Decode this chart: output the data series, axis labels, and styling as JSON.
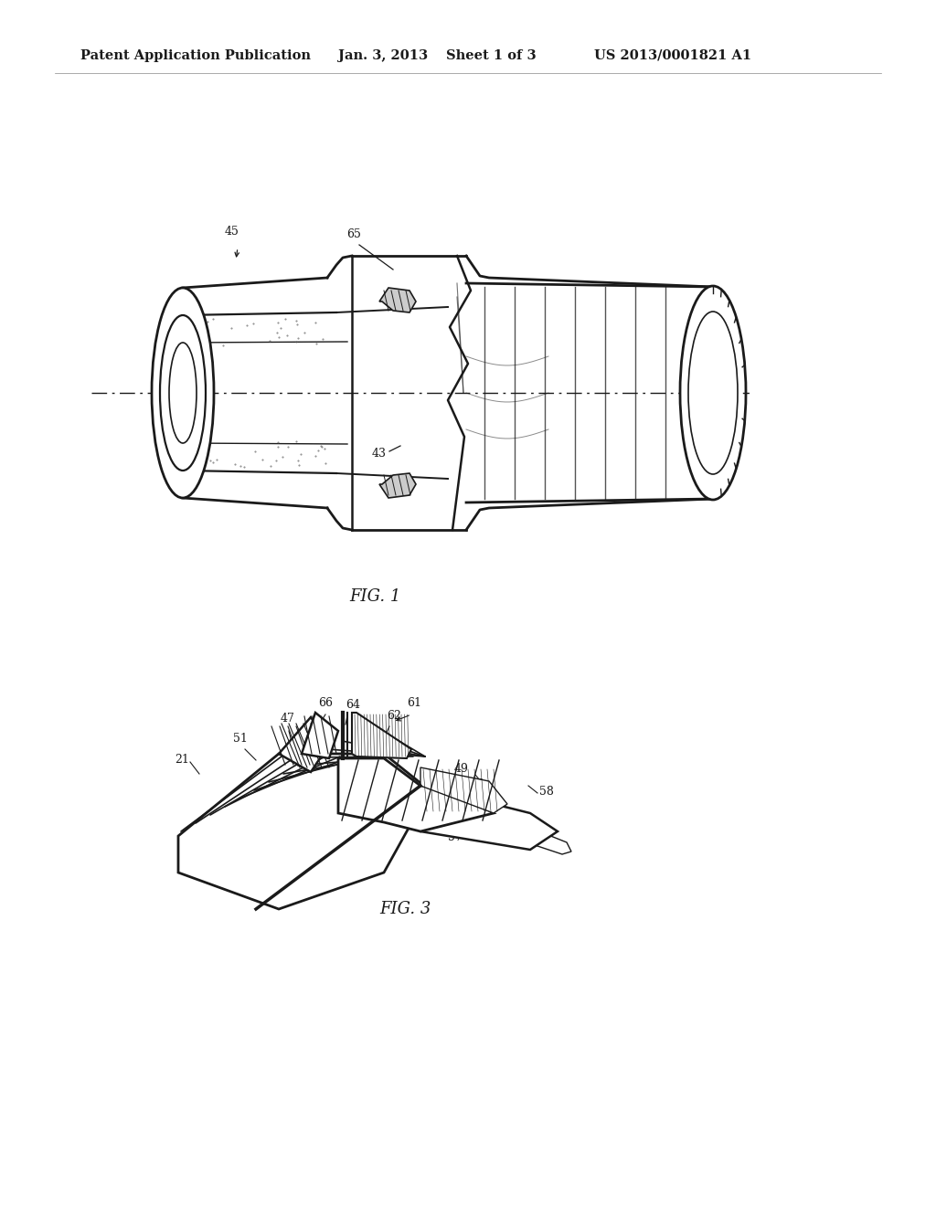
{
  "background_color": "#ffffff",
  "line_color": "#1a1a1a",
  "text_color": "#1a1a1a",
  "header_text": "Patent Application Publication",
  "header_date": "Jan. 3, 2013",
  "header_sheet": "Sheet 1 of 3",
  "header_patent": "US 2013/0001821 A1",
  "fig1_label": "FIG. 1",
  "fig3_label": "FIG. 3",
  "header_fontsize": 10.5,
  "annotation_fontsize": 9,
  "fig_label_fontsize": 13
}
